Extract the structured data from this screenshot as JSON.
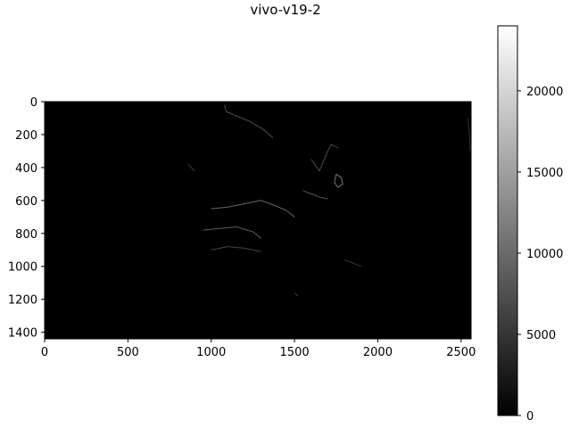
{
  "chart_data": {
    "type": "heatmap",
    "title": "vivo-v19-2",
    "colormap": "gray",
    "image_extent": {
      "x": [
        0,
        2560
      ],
      "y": [
        0,
        1440
      ]
    },
    "x_axis": {
      "label": "",
      "ticks": [
        0,
        500,
        1000,
        1500,
        2000,
        2500
      ],
      "tick_labels": [
        "0",
        "500",
        "1000",
        "1500",
        "2000",
        "2500"
      ],
      "range": [
        0,
        2560
      ]
    },
    "y_axis": {
      "label": "",
      "inverted": true,
      "ticks": [
        0,
        200,
        400,
        600,
        800,
        1000,
        1200,
        1400
      ],
      "tick_labels": [
        "0",
        "200",
        "400",
        "600",
        "800",
        "1000",
        "1200",
        "1400"
      ],
      "range": [
        0,
        1440
      ]
    },
    "colorbar": {
      "min": 0,
      "max": 24000,
      "ticks": [
        0,
        5000,
        10000,
        15000,
        20000
      ],
      "tick_labels": [
        "0",
        "5000",
        "10000",
        "15000",
        "20000"
      ]
    },
    "edge_traces": [
      {
        "name": "upper-center-edges",
        "value": 9000,
        "points": [
          [
            1080,
            20
          ],
          [
            1090,
            60
          ],
          [
            1230,
            120
          ],
          [
            1300,
            160
          ],
          [
            1350,
            200
          ],
          [
            1370,
            220
          ]
        ]
      },
      {
        "name": "right-blob",
        "value": 14000,
        "points": [
          [
            1750,
            440
          ],
          [
            1780,
            460
          ],
          [
            1790,
            500
          ],
          [
            1760,
            520
          ],
          [
            1740,
            490
          ],
          [
            1750,
            440
          ]
        ]
      },
      {
        "name": "center-contour",
        "value": 12000,
        "points": [
          [
            1000,
            650
          ],
          [
            1100,
            640
          ],
          [
            1200,
            620
          ],
          [
            1300,
            600
          ],
          [
            1380,
            630
          ],
          [
            1450,
            660
          ],
          [
            1500,
            700
          ]
        ]
      },
      {
        "name": "lower-left-contour",
        "value": 11000,
        "points": [
          [
            950,
            780
          ],
          [
            1050,
            770
          ],
          [
            1150,
            760
          ],
          [
            1250,
            790
          ],
          [
            1300,
            830
          ]
        ]
      },
      {
        "name": "bottom-contour",
        "value": 8000,
        "points": [
          [
            1000,
            900
          ],
          [
            1100,
            880
          ],
          [
            1200,
            890
          ],
          [
            1300,
            910
          ]
        ]
      },
      {
        "name": "right-upper-edge",
        "value": 9000,
        "points": [
          [
            1600,
            350
          ],
          [
            1650,
            420
          ],
          [
            1700,
            300
          ],
          [
            1720,
            260
          ],
          [
            1760,
            280
          ]
        ]
      },
      {
        "name": "mid-right-edge",
        "value": 10000,
        "points": [
          [
            1550,
            540
          ],
          [
            1600,
            560
          ],
          [
            1650,
            580
          ],
          [
            1700,
            590
          ]
        ]
      },
      {
        "name": "left-mark",
        "value": 7000,
        "points": [
          [
            860,
            380
          ],
          [
            880,
            400
          ],
          [
            900,
            420
          ]
        ]
      },
      {
        "name": "far-right-edge",
        "value": 6000,
        "points": [
          [
            2540,
            100
          ],
          [
            2550,
            200
          ],
          [
            2555,
            300
          ]
        ]
      },
      {
        "name": "lower-right-edge",
        "value": 6000,
        "points": [
          [
            1800,
            960
          ],
          [
            1850,
            980
          ],
          [
            1900,
            1000
          ]
        ]
      },
      {
        "name": "bottom-mark",
        "value": 7000,
        "points": [
          [
            1500,
            1160
          ],
          [
            1520,
            1180
          ]
        ]
      }
    ]
  }
}
